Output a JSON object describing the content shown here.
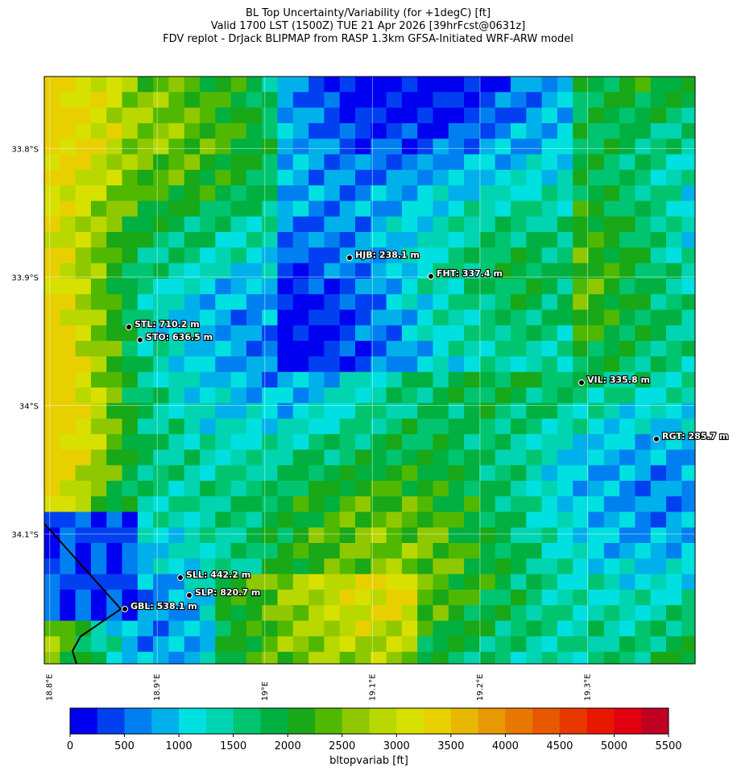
{
  "header": {
    "title_lines": [
      "BL Top Uncertainty/Variability (for +1degC) [ft]",
      "Valid 1700 LST (1500Z) TUE 21 Apr 2026 [39hrFcst@0631z]",
      "FDV replot - DrJack BLIPMAP from RASP 1.3km GFSA-Initiated WRF-ARW model"
    ]
  },
  "map": {
    "xlim": [
      18.795,
      19.4
    ],
    "ylim": [
      -34.201,
      -33.744
    ],
    "xticks": [
      {
        "value": 18.8,
        "label": "18.8°E"
      },
      {
        "value": 18.9,
        "label": "18.9°E"
      },
      {
        "value": 19.0,
        "label": "19°E"
      },
      {
        "value": 19.1,
        "label": "19.1°E"
      },
      {
        "value": 19.2,
        "label": "19.2°E"
      },
      {
        "value": 19.3,
        "label": "19.3°E"
      }
    ],
    "yticks": [
      {
        "value": -33.8,
        "label": "33.8°S"
      },
      {
        "value": -33.9,
        "label": "33.9°S"
      },
      {
        "value": -34.0,
        "label": "34°S"
      },
      {
        "value": -34.1,
        "label": "34.1°S"
      }
    ],
    "stations": [
      "HJB: 238.1 m",
      "FHT: 337.4 m",
      "STL: 710.2 m",
      "STO: 636.5 m",
      "VIL: 335.8 m",
      "RGT: 285.7 m",
      "SLL: 442.2 m",
      "SLP: 820.7 m",
      "GBL: 538.1 m"
    ]
  },
  "colorbar": {
    "label": "bltopvariab [ft]",
    "lim": [
      0,
      5500
    ],
    "ticks": [
      0,
      500,
      1000,
      1500,
      2000,
      2500,
      3000,
      3500,
      4000,
      4500,
      5000,
      5500
    ],
    "colors": [
      "#0000f0",
      "#0040f0",
      "#0080f0",
      "#00b0ea",
      "#00e0e0",
      "#00d4b0",
      "#00c470",
      "#00b040",
      "#18a818",
      "#50b800",
      "#90c800",
      "#b8d800",
      "#d8e000",
      "#e8d000",
      "#e8b800",
      "#e89800",
      "#e87800",
      "#e85800",
      "#e83800",
      "#e81800",
      "#e00010",
      "#c00020"
    ]
  }
}
